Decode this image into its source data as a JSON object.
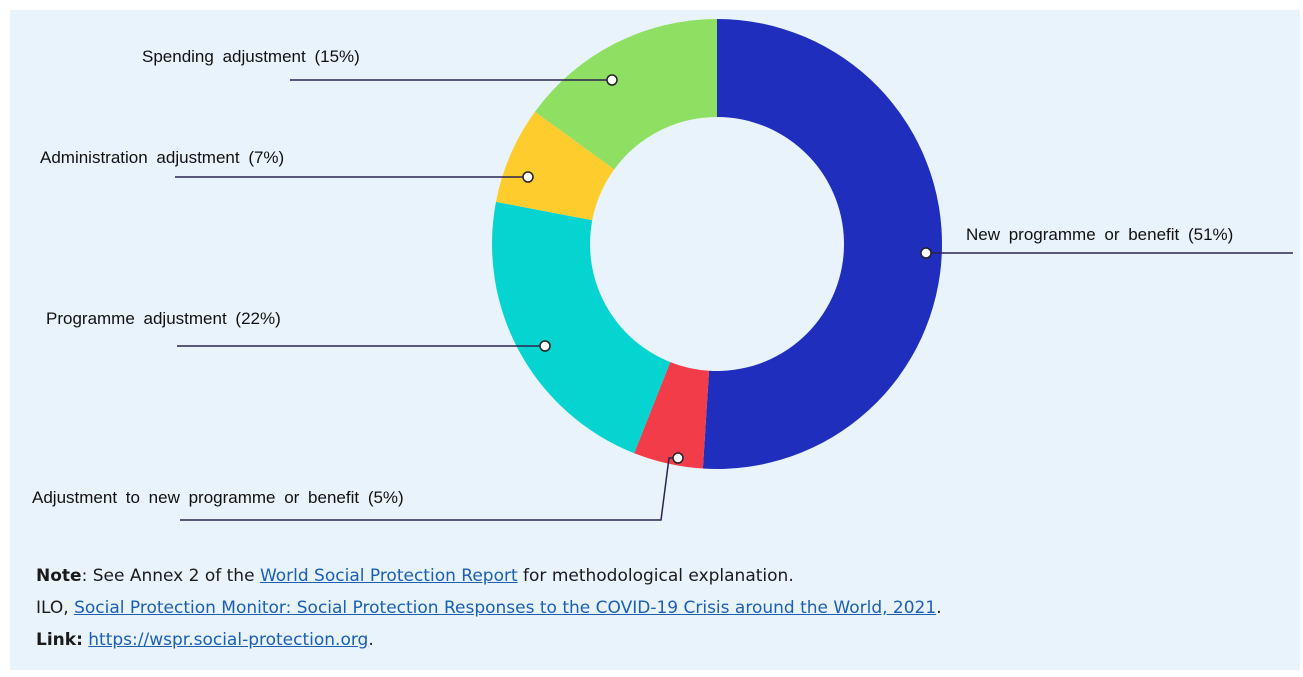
{
  "chart_data": {
    "type": "pie",
    "variant": "donut",
    "categories": [
      "New programme or benefit",
      "Adjustment to new programme or benefit",
      "Programme adjustment",
      "Administration adjustment",
      "Spending adjustment"
    ],
    "values": [
      51,
      5,
      22,
      7,
      15
    ],
    "labels": [
      "New programme  or benefit (51%)",
      "Adjustment to new programme or benefit (5%)",
      "Programme  adjustment (22%)",
      "Administration  adjustment (7%)",
      "Spending  adjustment (15%)"
    ],
    "colors": [
      "#1f2ebd",
      "#f23c4a",
      "#06d4d0",
      "#ffcc2e",
      "#8fdf63"
    ],
    "start": "12 o'clock, clockwise"
  },
  "notes": {
    "note_label": "Note",
    "note_text_before": ": See Annex 2 of the ",
    "note_link": "World Social Protection Report",
    "note_text_after": " for methodological explanation.",
    "source_prefix": "ILO, ",
    "source_link": "Social Protection Monitor: Social Protection Responses to the COVID-19 Crisis around the World, 2021",
    "source_suffix": ".",
    "link_label": "Link:",
    "link_url": "https://wspr.social-protection.org",
    "link_suffix": "."
  },
  "colors": {
    "background": "#e9f3fb",
    "leader_line": "#2a2450",
    "link": "#1a5fb4"
  }
}
